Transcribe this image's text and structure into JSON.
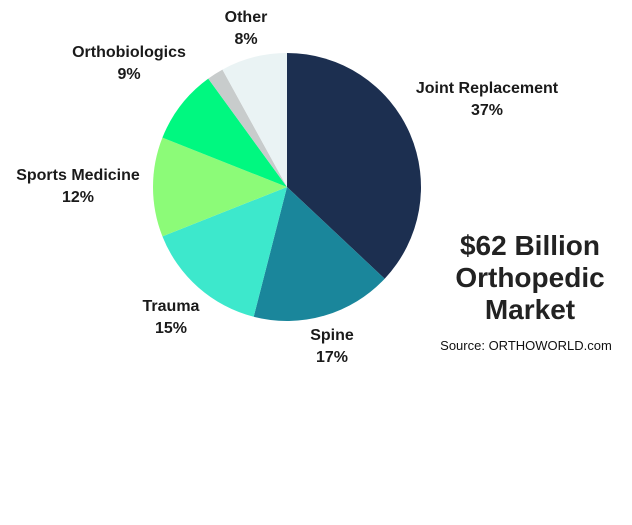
{
  "chart_data": {
    "type": "pie",
    "title": "$62 Billion Orthopedic Market",
    "source": "Source: ORTHOWORLD.com",
    "categories": [
      "Joint Replacement",
      "Spine",
      "Trauma",
      "Sports Medicine",
      "Orthobiologics",
      null,
      "Other"
    ],
    "values": [
      37,
      17,
      15,
      12,
      9,
      2,
      8
    ],
    "value_labels": [
      "37%",
      "17%",
      "15%",
      "12%",
      "9%",
      null,
      "8%"
    ],
    "colors": [
      "#1c2f50",
      "#1a869b",
      "#3de8cc",
      "#8cfb78",
      "#00f880",
      "#c8cccc",
      "#eaf3f4"
    ]
  }
}
